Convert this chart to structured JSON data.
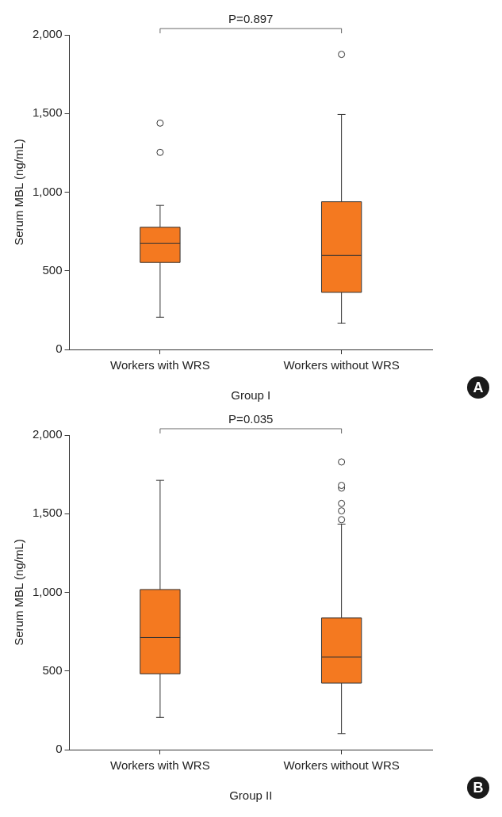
{
  "chart_data": [
    {
      "type": "box",
      "categories": [
        "Workers with WRS",
        "Workers without WRS"
      ],
      "xlabel": "Group I",
      "ylabel": "Serum MBL (ng/mL)",
      "ylim": [
        0,
        2000
      ],
      "yticks": [
        0,
        {
          "value": 500,
          "label": "500"
        },
        {
          "value": 1000,
          "label": "1,000"
        },
        {
          "value": 1500,
          "label": "1,500"
        },
        {
          "value": 2000,
          "label": "2,000"
        }
      ],
      "grid": false,
      "marker": "circle",
      "annotations": [
        "P=0.897",
        "A"
      ],
      "series": [
        {
          "color": "#f47920",
          "boxes": [
            {
              "low": 205,
              "q1": 553,
              "median": 674,
              "q3": 777,
              "high": 916,
              "outliers": [
                1253,
                1439
              ]
            },
            {
              "low": 166,
              "q1": 363,
              "median": 598,
              "q3": 939,
              "high": 1494,
              "outliers": [
                1876
              ]
            }
          ]
        }
      ]
    },
    {
      "type": "box",
      "categories": [
        "Workers with WRS",
        "Workers without WRS"
      ],
      "xlabel": "Group II",
      "ylabel": "Serum MBL (ng/mL)",
      "ylim": [
        0,
        2000
      ],
      "yticks": [
        0,
        {
          "value": 500,
          "label": "500"
        },
        {
          "value": 1000,
          "label": "1,000"
        },
        {
          "value": 1500,
          "label": "1,500"
        },
        {
          "value": 2000,
          "label": "2,000"
        }
      ],
      "grid": false,
      "marker": "circle",
      "annotations": [
        "P=0.035",
        "B"
      ],
      "series": [
        {
          "color": "#f47920",
          "boxes": [
            {
              "low": 205,
              "q1": 482,
              "median": 713,
              "q3": 1018,
              "high": 1712
            },
            {
              "low": 102,
              "q1": 423,
              "median": 589,
              "q3": 837,
              "high": 1434,
              "outliers": [
                1462,
                1518,
                1565,
                1663,
                1680,
                1829
              ]
            }
          ]
        }
      ]
    }
  ]
}
